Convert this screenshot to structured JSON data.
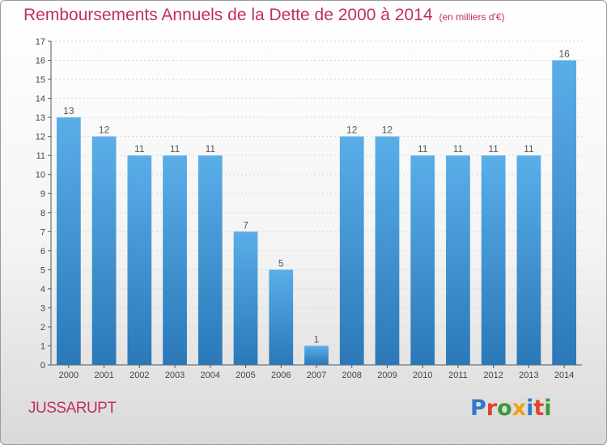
{
  "title": "Remboursements Annuels de la Dette de 2000 à 2014",
  "subtitle": "(en milliers d'€)",
  "commune": "JUSSARUPT",
  "logo": {
    "letters": [
      "P",
      "r",
      "o",
      "x",
      "i",
      "t",
      "i"
    ],
    "colors": [
      "#2f78c4",
      "#e0452b",
      "#3a9a3a",
      "#f0a010",
      "#2f78c4",
      "#e0452b",
      "#3a9a3a"
    ]
  },
  "chart_data": {
    "type": "bar",
    "categories": [
      "2000",
      "2001",
      "2002",
      "2003",
      "2004",
      "2005",
      "2006",
      "2007",
      "2008",
      "2009",
      "2010",
      "2011",
      "2012",
      "2013",
      "2014"
    ],
    "values": [
      13,
      12,
      11,
      11,
      11,
      7,
      5,
      1,
      12,
      12,
      11,
      11,
      11,
      11,
      16
    ],
    "data_labels": [
      "13",
      "12",
      "11",
      "11",
      "11",
      "7",
      "5",
      "1",
      "12",
      "12",
      "11",
      "11",
      "11",
      "11",
      "16"
    ],
    "ylim": [
      0,
      17
    ],
    "yticks": [
      0,
      1,
      2,
      3,
      4,
      5,
      6,
      7,
      8,
      9,
      10,
      11,
      12,
      13,
      14,
      15,
      16,
      17
    ],
    "grid": true,
    "bar_color_top": "#5aaee8",
    "bar_color_bottom": "#2a78b8",
    "title": "Remboursements Annuels de la Dette de 2000 à 2014",
    "xlabel": "",
    "ylabel": ""
  }
}
